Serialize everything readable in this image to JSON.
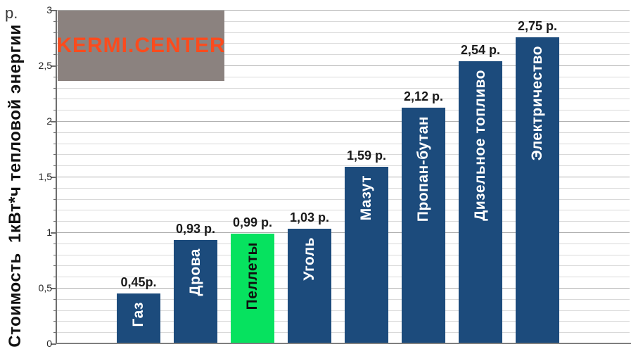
{
  "chart_data": {
    "type": "bar",
    "title": "",
    "ylabel": "Стоимость  1кВт*ч тепловой энергии",
    "y_unit_label": "р.",
    "xlabel": "",
    "categories": [
      "Газ",
      "Дрова",
      "Пеллеты",
      "Уголь",
      "Мазут",
      "Пропан-бутан",
      "Дизельное топливо",
      "Электричество"
    ],
    "values": [
      0.45,
      0.93,
      0.99,
      1.03,
      1.59,
      2.12,
      2.54,
      2.75
    ],
    "value_labels": [
      "0,45р.",
      "0,93 р.",
      "0,99 р.",
      "1,03 р.",
      "1,59 р.",
      "2,12 р.",
      "2,54 р.",
      "2,75 р."
    ],
    "highlight_index": 2,
    "ylim": [
      0,
      3
    ],
    "ytick_labels": [
      "0",
      "0,5",
      "1",
      "1,5",
      "2",
      "2,5",
      "3"
    ],
    "ytick_step": 0.5,
    "minor_grid_step": 0.1,
    "grid": true,
    "legend_position": "none",
    "colors": {
      "bar": "#1c4b7c",
      "highlight_bar": "#06e25f",
      "bar_label_on_blue": "#ffffff",
      "bar_label_on_green": "#101010",
      "value_label": "#1a1a1a"
    }
  },
  "watermark": {
    "text": "KERMI.CENTER",
    "bg_color": "#8b827f",
    "text_color": "#fb4b1d"
  }
}
